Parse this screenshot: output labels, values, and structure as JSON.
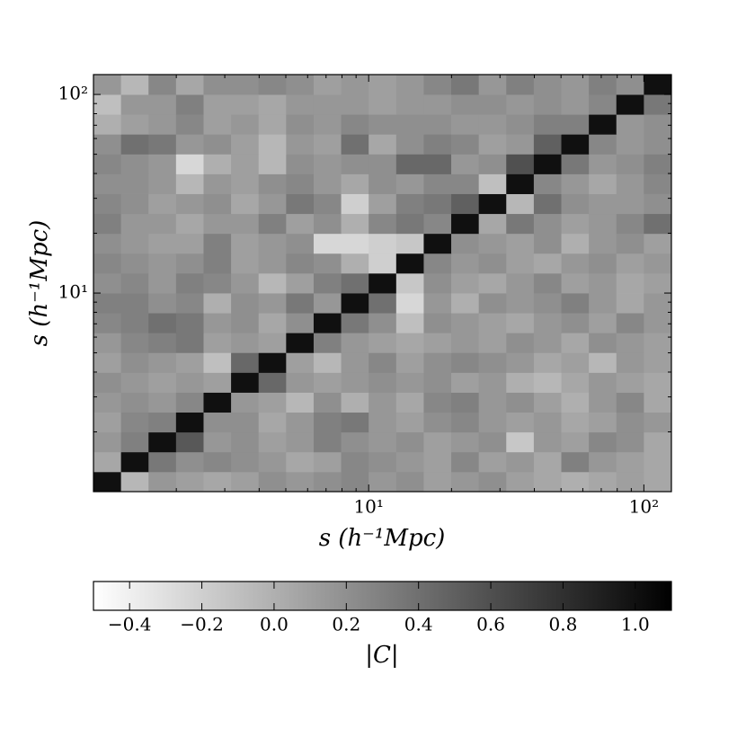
{
  "chart_data": {
    "type": "heatmap",
    "xlabel": "s (h⁻¹Mpc)",
    "ylabel": "s (h⁻¹Mpc)",
    "colorbar_label": "|C|",
    "x_edges": [
      1,
      1.259,
      1.585,
      1.995,
      2.512,
      3.162,
      3.981,
      5.012,
      6.31,
      7.943,
      10,
      12.59,
      15.85,
      19.95,
      25.12,
      31.62,
      39.81,
      50.12,
      63.1,
      79.43,
      100,
      125.9
    ],
    "y_edges": [
      1,
      1.259,
      1.585,
      1.995,
      2.512,
      3.162,
      3.981,
      5.012,
      6.31,
      7.943,
      10,
      12.59,
      15.85,
      19.95,
      25.12,
      31.62,
      39.81,
      50.12,
      63.1,
      79.43,
      100,
      125.9
    ],
    "xlim": [
      1,
      125.9
    ],
    "ylim": [
      1,
      125.9
    ],
    "xscale": "log",
    "yscale": "log",
    "xticks": [
      {
        "value": 10,
        "label": "10¹"
      },
      {
        "value": 100,
        "label": "10²"
      }
    ],
    "yticks": [
      {
        "value": 10,
        "label": "10¹"
      },
      {
        "value": 100,
        "label": "10²"
      }
    ],
    "xminorticks": [
      2,
      3,
      4,
      5,
      6,
      7,
      8,
      9,
      20,
      30,
      40,
      50,
      60,
      70,
      80,
      90
    ],
    "yminorticks": [
      2,
      3,
      4,
      5,
      6,
      7,
      8,
      9,
      20,
      30,
      40,
      50,
      60,
      70,
      80,
      90
    ],
    "colormap": "gray_r",
    "vmin": -0.5,
    "vmax": 1.1,
    "cbar_ticks": [
      {
        "value": -0.4,
        "label": "−0.4"
      },
      {
        "value": -0.2,
        "label": "−0.2"
      },
      {
        "value": 0,
        "label": "0.0"
      },
      0.2,
      0.4,
      0.6,
      0.8,
      {
        "value": 1,
        "label": "1.0"
      }
    ],
    "values": [
      [
        1.0,
        -0.05,
        0.15,
        0.1,
        0.05,
        0.1,
        0.2,
        0.15,
        0.2,
        0.25,
        0.15,
        0.2,
        0.1,
        0.15,
        0.2,
        0.1,
        0.05,
        0.0,
        0.05,
        0.1,
        0.05
      ],
      [
        0.05,
        1.0,
        0.35,
        0.2,
        0.25,
        0.2,
        0.15,
        0.05,
        0.1,
        0.25,
        0.2,
        0.15,
        0.1,
        0.25,
        0.1,
        0.15,
        0.05,
        0.3,
        0.15,
        0.1,
        0.05
      ],
      [
        0.15,
        0.3,
        1.0,
        0.55,
        0.15,
        0.2,
        0.1,
        0.15,
        0.3,
        0.2,
        0.15,
        0.2,
        0.1,
        0.15,
        0.2,
        -0.15,
        0.15,
        0.1,
        0.25,
        0.2,
        0.05
      ],
      [
        0.1,
        0.25,
        0.3,
        1.0,
        0.2,
        0.2,
        0.05,
        0.15,
        0.3,
        0.35,
        0.15,
        0.1,
        0.2,
        0.25,
        0.15,
        0.1,
        0.15,
        0.05,
        0.1,
        0.2,
        0.15
      ],
      [
        0.15,
        0.2,
        0.15,
        0.25,
        1.0,
        0.15,
        0.1,
        -0.05,
        0.2,
        0.0,
        0.15,
        0.05,
        0.25,
        0.3,
        0.15,
        0.2,
        0.1,
        0.0,
        0.15,
        0.25,
        0.05
      ],
      [
        0.2,
        0.15,
        0.1,
        0.15,
        0.1,
        1.0,
        0.45,
        0.15,
        0.1,
        0.15,
        0.2,
        0.15,
        0.2,
        0.1,
        0.15,
        0.0,
        -0.05,
        0.05,
        0.15,
        0.1,
        0.05
      ],
      [
        0.1,
        0.2,
        0.15,
        0.1,
        -0.1,
        0.45,
        1.0,
        0.1,
        -0.05,
        0.15,
        0.25,
        0.1,
        0.2,
        0.25,
        0.2,
        0.15,
        0.05,
        0.1,
        -0.05,
        0.15,
        0.1
      ],
      [
        0.15,
        0.25,
        0.3,
        0.35,
        0.1,
        0.15,
        0.1,
        1.0,
        0.3,
        0.15,
        0.1,
        0.05,
        0.1,
        0.15,
        0.1,
        0.2,
        0.15,
        0.05,
        0.2,
        0.15,
        0.1
      ],
      [
        0.25,
        0.3,
        0.4,
        0.35,
        0.15,
        0.2,
        0.05,
        0.2,
        1.0,
        0.35,
        0.2,
        -0.1,
        0.2,
        0.15,
        0.1,
        0.05,
        0.15,
        0.2,
        0.1,
        0.25,
        0.15
      ],
      [
        0.3,
        0.3,
        0.2,
        0.25,
        0.0,
        0.2,
        0.15,
        0.35,
        0.15,
        1.0,
        0.4,
        -0.25,
        0.15,
        0.0,
        0.2,
        0.15,
        0.2,
        0.3,
        0.15,
        0.05,
        0.15
      ],
      [
        0.2,
        0.25,
        0.15,
        0.3,
        0.25,
        0.15,
        -0.05,
        0.1,
        0.3,
        0.4,
        1.0,
        -0.15,
        0.2,
        0.1,
        0.05,
        0.15,
        0.25,
        0.1,
        0.15,
        0.05,
        0.1
      ],
      [
        0.25,
        0.2,
        0.15,
        0.2,
        0.3,
        0.1,
        0.15,
        0.25,
        0.2,
        0.0,
        -0.2,
        1.0,
        0.25,
        0.15,
        0.2,
        0.1,
        0.05,
        0.15,
        0.2,
        0.1,
        0.15
      ],
      [
        0.2,
        0.15,
        0.1,
        0.1,
        0.3,
        0.1,
        0.15,
        0.2,
        -0.25,
        -0.25,
        -0.2,
        -0.15,
        1.0,
        0.2,
        0.15,
        0.1,
        0.2,
        0.0,
        0.15,
        0.2,
        0.1
      ],
      [
        0.3,
        0.15,
        0.15,
        0.05,
        0.15,
        0.15,
        0.3,
        0.1,
        0.2,
        0.0,
        0.25,
        0.35,
        0.25,
        1.0,
        0.05,
        0.35,
        0.2,
        0.1,
        0.15,
        0.25,
        0.4
      ],
      [
        0.25,
        0.2,
        0.1,
        0.15,
        0.2,
        0.05,
        0.15,
        0.35,
        0.25,
        -0.2,
        0.1,
        0.3,
        0.35,
        0.5,
        1.0,
        -0.05,
        0.4,
        0.2,
        0.15,
        0.15,
        0.2
      ],
      [
        0.2,
        0.2,
        0.15,
        -0.05,
        0.15,
        0.1,
        0.2,
        0.25,
        0.15,
        0.05,
        0.2,
        0.15,
        0.25,
        0.25,
        -0.1,
        1.0,
        0.25,
        0.15,
        0.05,
        0.15,
        0.25
      ],
      [
        0.25,
        0.2,
        0.15,
        -0.25,
        0.0,
        0.1,
        -0.05,
        0.2,
        0.15,
        0.2,
        0.2,
        0.45,
        0.45,
        0.15,
        0.2,
        0.6,
        1.0,
        0.35,
        0.15,
        0.2,
        0.3
      ],
      [
        0.2,
        0.4,
        0.35,
        0.15,
        0.2,
        0.1,
        -0.05,
        0.15,
        0.1,
        0.4,
        0.05,
        0.2,
        0.3,
        0.25,
        0.1,
        0.15,
        0.5,
        1.0,
        0.25,
        0.15,
        0.2
      ],
      [
        0.0,
        0.1,
        0.15,
        0.25,
        0.1,
        0.15,
        0.05,
        0.2,
        0.15,
        0.25,
        0.2,
        0.2,
        0.2,
        0.15,
        0.15,
        0.2,
        0.3,
        0.3,
        1.0,
        0.15,
        0.2
      ],
      [
        -0.1,
        0.15,
        0.15,
        0.3,
        0.1,
        0.1,
        0.05,
        0.15,
        0.15,
        0.15,
        0.1,
        0.15,
        0.15,
        0.2,
        0.2,
        0.15,
        0.2,
        0.15,
        0.25,
        1.0,
        0.35
      ],
      [
        0.15,
        -0.05,
        0.25,
        0.05,
        0.2,
        0.2,
        0.25,
        0.2,
        0.1,
        0.15,
        0.1,
        0.15,
        0.25,
        0.35,
        0.15,
        0.3,
        0.2,
        0.15,
        0.3,
        0.2,
        1.0
      ]
    ]
  }
}
